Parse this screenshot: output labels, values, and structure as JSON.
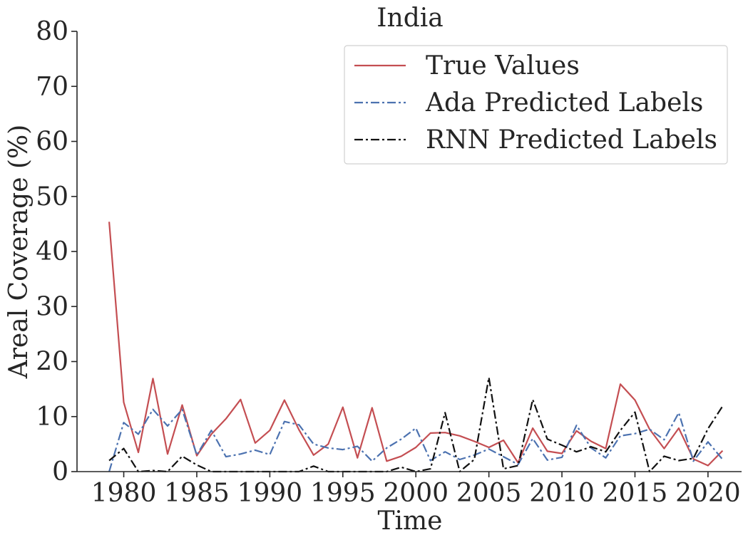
{
  "chart_data": {
    "type": "line",
    "title": "India",
    "xlabel": "Time",
    "ylabel": "Areal Coverage (%)",
    "xlim": [
      1976.8,
      2022.3
    ],
    "ylim": [
      0,
      80
    ],
    "xticks": [
      1980,
      1985,
      1990,
      1995,
      2000,
      2005,
      2010,
      2015,
      2020
    ],
    "yticks": [
      0,
      10,
      20,
      30,
      40,
      50,
      60,
      70,
      80
    ],
    "grid": false,
    "legend_position": "top-right",
    "x": [
      1979,
      1980,
      1981,
      1982,
      1983,
      1984,
      1985,
      1986,
      1987,
      1988,
      1989,
      1990,
      1991,
      1992,
      1993,
      1994,
      1995,
      1996,
      1997,
      1998,
      1999,
      2000,
      2001,
      2002,
      2003,
      2004,
      2005,
      2006,
      2007,
      2008,
      2009,
      2010,
      2011,
      2012,
      2013,
      2014,
      2015,
      2016,
      2017,
      2018,
      2019,
      2020,
      2021
    ],
    "series": [
      {
        "name": "True Values",
        "color": "#c44e52",
        "style": "solid",
        "values": [
          45.4,
          12.6,
          3.5,
          16.9,
          3.2,
          12.1,
          2.9,
          6.8,
          9.6,
          13.1,
          5.2,
          7.5,
          13.0,
          7.6,
          3.0,
          5.0,
          11.7,
          2.5,
          11.6,
          1.9,
          2.8,
          4.4,
          7.0,
          7.1,
          6.5,
          5.5,
          4.4,
          5.7,
          1.6,
          7.9,
          3.7,
          3.3,
          7.4,
          5.5,
          4.2,
          15.9,
          13.0,
          7.7,
          4.2,
          7.9,
          2.3,
          1.1,
          3.8
        ]
      },
      {
        "name": "Ada Predicted Labels",
        "color": "#4c72b0",
        "style": "dashdot",
        "values": [
          0,
          8.9,
          6.8,
          11.3,
          8.3,
          11.3,
          3.0,
          7.5,
          2.7,
          3.2,
          3.9,
          3.1,
          9.1,
          8.5,
          5.0,
          4.3,
          4.0,
          4.6,
          1.9,
          4.3,
          5.9,
          7.9,
          2.0,
          3.6,
          2.2,
          3.0,
          4.1,
          2.7,
          1.3,
          6.0,
          2.1,
          2.6,
          8.4,
          4.3,
          2.5,
          6.5,
          6.9,
          7.7,
          5.8,
          10.7,
          1.9,
          5.4,
          2.2
        ]
      },
      {
        "name": "RNN Predicted Labels",
        "color": "#111111",
        "style": "dashdot",
        "values": [
          2.0,
          4.2,
          0,
          0.2,
          0,
          2.8,
          1.2,
          0,
          0,
          0,
          0,
          0,
          0,
          0,
          1.0,
          0,
          0,
          0,
          0,
          0,
          0.8,
          0,
          0.5,
          10.7,
          0,
          2.2,
          17.1,
          0.5,
          1.1,
          13.1,
          5.9,
          4.8,
          3.6,
          4.5,
          3.6,
          7.5,
          10.8,
          0,
          2.8,
          2.0,
          2.4,
          7.8,
          11.9
        ]
      }
    ]
  }
}
